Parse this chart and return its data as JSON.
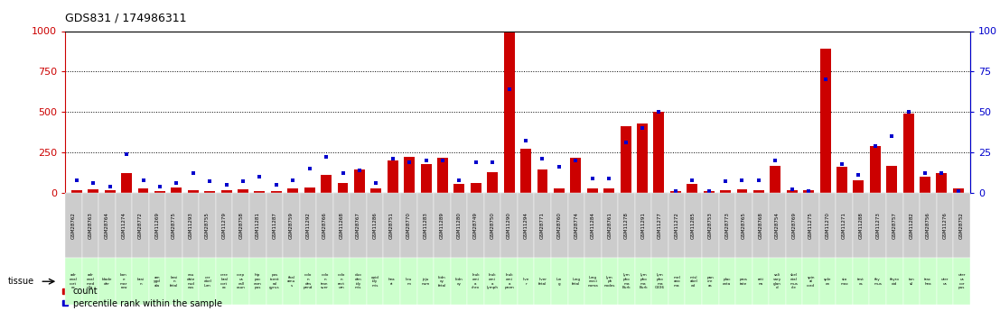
{
  "title": "GDS831 / 174986311",
  "samples": [
    "GSM28762",
    "GSM28763",
    "GSM28764",
    "GSM11274",
    "GSM28772",
    "GSM11269",
    "GSM28775",
    "GSM11293",
    "GSM28755",
    "GSM11279",
    "GSM28758",
    "GSM11281",
    "GSM11287",
    "GSM28759",
    "GSM11292",
    "GSM28766",
    "GSM11268",
    "GSM28767",
    "GSM11286",
    "GSM28751",
    "GSM28770",
    "GSM11283",
    "GSM11289",
    "GSM11280",
    "GSM28749",
    "GSM28750",
    "GSM11290",
    "GSM11294",
    "GSM28771",
    "GSM28760",
    "GSM28774",
    "GSM11284",
    "GSM28761",
    "GSM11278",
    "GSM11291",
    "GSM11277",
    "GSM11272",
    "GSM11285",
    "GSM28753",
    "GSM28773",
    "GSM28765",
    "GSM28768",
    "GSM28754",
    "GSM28769",
    "GSM11275",
    "GSM11270",
    "GSM11271",
    "GSM11288",
    "GSM11273",
    "GSM28757",
    "GSM11282",
    "GSM28756",
    "GSM11276",
    "GSM28752"
  ],
  "tissues": [
    "adr\nenal\ncort\nex",
    "adr\nenal\nmed\nulla",
    "blade\nder",
    "bon\ne\nmar\nrow",
    "brai\nn",
    "am\nygd\nala",
    "brai\nn\nfetal",
    "cau\ndate\nnud\neus",
    "cer\nebel\nlum",
    "cere\nbral\ncort\nex",
    "corp\nus\ncall\nosun",
    "hip\npoc\ncam\npus",
    "pos\ntcent\nral\ngyrus",
    "thal\namu\ns",
    "colo\nn\ndes\npend",
    "colo\nn\ntran\nsver",
    "colo\nn\nrect\num",
    "duo\nden\nidy\nmis",
    "epid\nidy\nmis",
    "hea\nrt",
    "lieu\nm",
    "jeju\nnum",
    "kidn\ney\nfetal",
    "kidn\ney",
    "leuk\nemi\na\nchro",
    "leuk\nemi\na\nlymph",
    "leuk\nemi\na\nprom",
    "live\nr",
    "liver\nfetal",
    "lun\ng",
    "lung\nfetal",
    "lung\ncarci\nnoma",
    "lym\nph\nnodes",
    "lym\npho\nma\nBurk",
    "lym\npho\nma\nBurk",
    "lym\npho\nma\nG336",
    "mel\nano\nma",
    "misl\nabel\ned",
    "pan\ncre\nas",
    "plac\nenta",
    "pros\ntate",
    "reti\nna",
    "sali\nvary\nglan\nd",
    "skel\netal\nmus\ncle",
    "spin\nal\ncord",
    "sple\nen",
    "sto\nmac",
    "test\nes",
    "thy\nmus",
    "thyro\noid",
    "ton\nsil",
    "trac\nhea",
    "uter\nus",
    "uter\nus\ncor\npus"
  ],
  "counts": [
    18,
    22,
    15,
    120,
    28,
    10,
    35,
    15,
    12,
    18,
    20,
    12,
    10,
    25,
    35,
    110,
    60,
    145,
    25,
    200,
    220,
    180,
    215,
    55,
    60,
    130,
    990,
    270,
    145,
    30,
    215,
    25,
    30,
    410,
    430,
    500,
    10,
    55,
    10,
    15,
    20,
    15,
    165,
    15,
    15,
    890,
    160,
    75,
    290,
    165,
    490,
    100,
    120,
    25
  ],
  "percentiles": [
    8,
    6,
    4,
    24,
    8,
    4,
    6,
    12,
    7,
    5,
    7,
    10,
    5,
    8,
    15,
    22,
    12,
    14,
    6,
    21,
    19,
    20,
    20,
    8,
    19,
    19,
    64,
    32,
    21,
    16,
    20,
    9,
    9,
    31,
    40,
    50,
    1,
    8,
    1,
    7,
    8,
    8,
    20,
    2,
    1,
    70,
    18,
    11,
    29,
    35,
    50,
    12,
    12,
    1
  ],
  "bar_color": "#cc0000",
  "dot_color": "#0000cc",
  "background_color": "#ffffff",
  "sample_bg": "#cccccc",
  "tissue_bg": "#ccffcc",
  "ylim_left": 1000,
  "ylim_right": 100,
  "yticks_left": [
    0,
    250,
    500,
    750,
    1000
  ],
  "yticks_right": [
    0,
    25,
    50,
    75,
    100
  ],
  "gridline_vals": [
    250,
    500,
    750
  ]
}
